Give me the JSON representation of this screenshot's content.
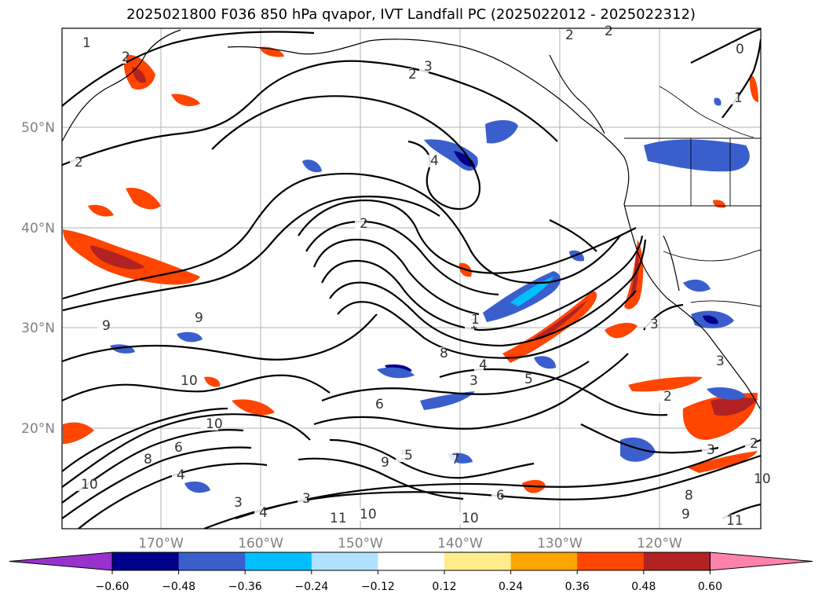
{
  "title": "2025021800 F036 850 hPa qvapor, IVT Landfall PC (2025022012 - 2025022312)",
  "map": {
    "lon_ticks": [
      "170°W",
      "160°W",
      "150°W",
      "140°W",
      "130°W",
      "120°W"
    ],
    "lat_ticks": [
      "50°N",
      "40°N",
      "30°N",
      "20°N"
    ],
    "gridlines": true
  },
  "colorbar": {
    "ticks": [
      "−0.60",
      "−0.48",
      "−0.36",
      "−0.24",
      "−0.12",
      "0.12",
      "0.24",
      "0.36",
      "0.48",
      "0.60"
    ],
    "colors": [
      "#9932cc",
      "#00008b",
      "#3a5fcd",
      "#00bfff",
      "#b0e2ff",
      "#ffffff",
      "#ffec8b",
      "#ffa500",
      "#ff4500",
      "#b22222",
      "#ff82ab"
    ],
    "extend": "both"
  },
  "contour_labels": [
    "1",
    "2",
    "2",
    "2",
    "2",
    "3",
    "2",
    "4",
    "2",
    "9",
    "9",
    "10",
    "1",
    "8",
    "4",
    "3",
    "5",
    "10",
    "8",
    "6",
    "4",
    "5",
    "3",
    "11",
    "10",
    "7",
    "6",
    "10",
    "9",
    "3",
    "8",
    "10",
    "11",
    "2",
    "3",
    "1",
    "0",
    "1",
    "3",
    "6",
    "3",
    "2",
    "10",
    "4",
    "9",
    "5"
  ],
  "icons": {
    "map": "map-area",
    "colorbar": "colorbar"
  }
}
